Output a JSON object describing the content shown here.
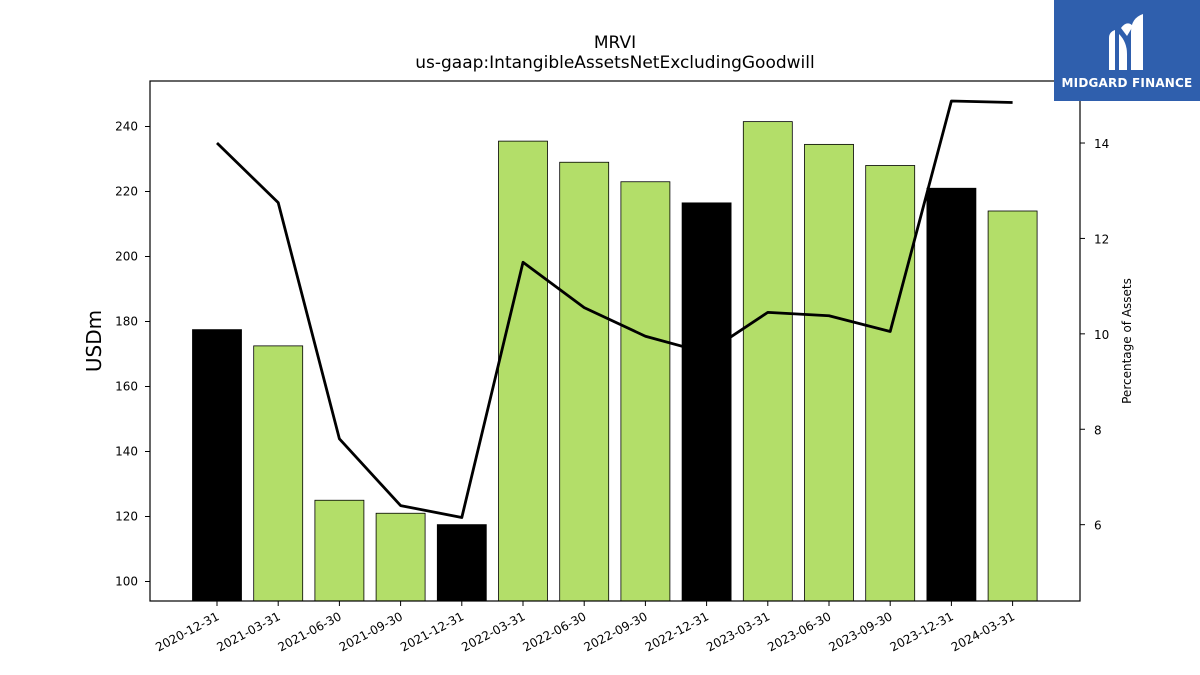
{
  "chart_data": {
    "type": "bar",
    "title": "MRVI",
    "subtitle": "us-gaap:IntangibleAssetsNetExcludingGoodwill",
    "ylabel": "USDm",
    "y2label": "Percentage of Assets",
    "categories": [
      "2020-12-31",
      "2021-03-31",
      "2021-06-30",
      "2021-09-30",
      "2021-12-31",
      "2022-03-31",
      "2022-06-30",
      "2022-09-30",
      "2022-12-31",
      "2023-03-31",
      "2023-06-30",
      "2023-09-30",
      "2023-12-31",
      "2024-03-31"
    ],
    "bar_values": [
      177.5,
      172.5,
      125,
      121,
      117.5,
      235.5,
      229,
      223,
      216.5,
      241.5,
      234.5,
      228,
      221,
      214
    ],
    "bar_colors": [
      "#000000",
      "#b3de69",
      "#b3de69",
      "#b3de69",
      "#000000",
      "#b3de69",
      "#b3de69",
      "#b3de69",
      "#000000",
      "#b3de69",
      "#b3de69",
      "#b3de69",
      "#000000",
      "#b3de69"
    ],
    "line_values": [
      14.0,
      12.75,
      7.8,
      6.4,
      6.15,
      11.5,
      10.55,
      9.95,
      9.6,
      10.45,
      10.38,
      10.05,
      14.88,
      14.85
    ],
    "ylim": [
      94,
      254
    ],
    "y2lim": [
      4.4,
      15.3
    ],
    "yticks": [
      100,
      120,
      140,
      160,
      180,
      200,
      220,
      240
    ],
    "y2ticks": [
      6,
      8,
      10,
      12,
      14
    ],
    "colors": {
      "accent_bar": "#b3de69",
      "highlight_bar": "#000000",
      "line": "#000000"
    }
  },
  "logo": {
    "text": "MIDGARD FINANCE",
    "color": "#2f5fad"
  }
}
